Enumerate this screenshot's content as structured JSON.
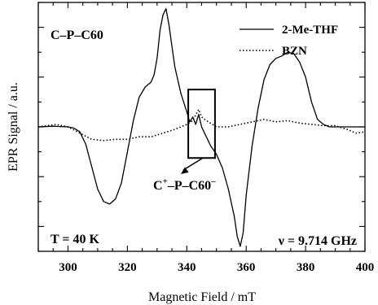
{
  "chart_data": {
    "type": "line",
    "title": "",
    "xlabel": "Magnetic Field / mT",
    "ylabel": "EPR Signal / a.u.",
    "xlim": [
      290,
      400
    ],
    "ylim": [
      -1.0,
      1.0
    ],
    "x_ticks": [
      300,
      320,
      340,
      360,
      380,
      400
    ],
    "x_tick_labels": [
      "300",
      "320",
      "340",
      "360",
      "380",
      "400"
    ],
    "y_tick_labels_shown": false,
    "grid": false,
    "legend_position": "top-right",
    "series": [
      {
        "name": "2-Me-THF",
        "style": "solid",
        "points": [
          [
            290,
            0.0
          ],
          [
            295,
            0.005
          ],
          [
            300,
            0.0
          ],
          [
            302,
            -0.01
          ],
          [
            304,
            -0.04
          ],
          [
            306,
            -0.14
          ],
          [
            308,
            -0.32
          ],
          [
            310,
            -0.5
          ],
          [
            312,
            -0.6
          ],
          [
            314,
            -0.62
          ],
          [
            316,
            -0.58
          ],
          [
            318,
            -0.45
          ],
          [
            320,
            -0.2
          ],
          [
            322,
            0.05
          ],
          [
            324,
            0.24
          ],
          [
            326,
            0.32
          ],
          [
            328,
            0.36
          ],
          [
            329,
            0.42
          ],
          [
            330,
            0.55
          ],
          [
            331,
            0.78
          ],
          [
            332,
            0.9
          ],
          [
            333,
            0.95
          ],
          [
            334,
            0.82
          ],
          [
            335,
            0.65
          ],
          [
            336,
            0.48
          ],
          [
            338,
            0.27
          ],
          [
            340,
            0.12
          ],
          [
            341,
            0.04
          ],
          [
            342,
            0.08
          ],
          [
            343,
            0.02
          ],
          [
            344,
            0.1
          ],
          [
            345,
            0.0
          ],
          [
            346,
            -0.05
          ],
          [
            347,
            -0.1
          ],
          [
            348,
            -0.15
          ],
          [
            350,
            -0.22
          ],
          [
            352,
            -0.33
          ],
          [
            354,
            -0.5
          ],
          [
            356,
            -0.72
          ],
          [
            357,
            -0.88
          ],
          [
            358,
            -0.96
          ],
          [
            359,
            -0.85
          ],
          [
            360,
            -0.55
          ],
          [
            362,
            -0.15
          ],
          [
            364,
            0.15
          ],
          [
            366,
            0.38
          ],
          [
            368,
            0.5
          ],
          [
            370,
            0.55
          ],
          [
            372,
            0.57
          ],
          [
            374,
            0.6
          ],
          [
            376,
            0.59
          ],
          [
            378,
            0.52
          ],
          [
            380,
            0.4
          ],
          [
            382,
            0.2
          ],
          [
            384,
            0.06
          ],
          [
            386,
            0.02
          ],
          [
            388,
            0.0
          ],
          [
            392,
            0.0
          ],
          [
            396,
            0.0
          ],
          [
            400,
            0.0
          ]
        ]
      },
      {
        "name": "BZN",
        "style": "dotted",
        "points": [
          [
            290,
            0.0
          ],
          [
            296,
            0.02
          ],
          [
            300,
            0.0
          ],
          [
            304,
            -0.05
          ],
          [
            308,
            -0.1
          ],
          [
            312,
            -0.11
          ],
          [
            316,
            -0.1
          ],
          [
            320,
            -0.1
          ],
          [
            324,
            -0.08
          ],
          [
            328,
            -0.08
          ],
          [
            332,
            -0.05
          ],
          [
            336,
            -0.02
          ],
          [
            340,
            0.02
          ],
          [
            342,
            0.05
          ],
          [
            344,
            0.14
          ],
          [
            345,
            0.08
          ],
          [
            346,
            0.06
          ],
          [
            348,
            0.03
          ],
          [
            350,
            0.0
          ],
          [
            354,
            0.0
          ],
          [
            358,
            0.02
          ],
          [
            362,
            0.04
          ],
          [
            366,
            0.06
          ],
          [
            370,
            0.04
          ],
          [
            374,
            0.05
          ],
          [
            378,
            0.03
          ],
          [
            382,
            0.02
          ],
          [
            386,
            0.01
          ],
          [
            390,
            0.01
          ],
          [
            394,
            -0.02
          ],
          [
            397,
            -0.05
          ],
          [
            400,
            -0.04
          ]
        ]
      }
    ],
    "annotations": {
      "sample_label": "C–P–C60",
      "temperature": "T = 40 K",
      "frequency": "ν = 9.714 GHz",
      "callout_main": "C",
      "callout_sup1": "+",
      "callout_mid": "–P–C60",
      "callout_sup2": "–",
      "callout_box_x": [
        340.5,
        349.5
      ],
      "callout_box_y": [
        -0.25,
        0.3
      ]
    }
  }
}
